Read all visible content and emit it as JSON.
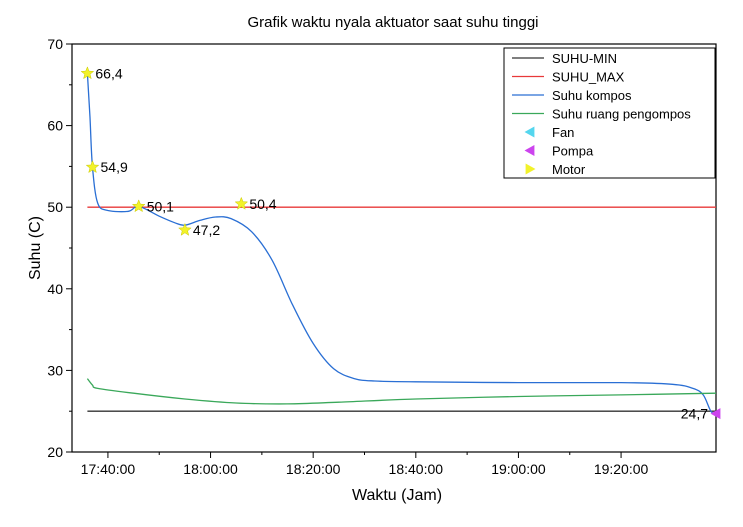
{
  "chart_data": {
    "type": "line",
    "title": "Grafik waktu nyala aktuator saat suhu tinggi",
    "xlabel": "Waktu (Jam)",
    "ylabel": "Suhu (C)",
    "xlim": [
      "17:33:00",
      "19:38:30"
    ],
    "ylim": [
      20,
      70
    ],
    "x_ticks": [
      "17:40:00",
      "18:00:00",
      "18:20:00",
      "18:40:00",
      "19:00:00",
      "19:20:00"
    ],
    "y_ticks": [
      20,
      30,
      40,
      50,
      60,
      70
    ],
    "grid": false,
    "legend_position": "top-right",
    "series": [
      {
        "name": "SUHU-MIN",
        "color": "#333333",
        "kind": "line",
        "points": [
          [
            "17:36:00",
            25
          ],
          [
            "19:38:30",
            25
          ]
        ]
      },
      {
        "name": "SUHU_MAX",
        "color": "#e8393a",
        "kind": "line",
        "points": [
          [
            "17:36:00",
            50
          ],
          [
            "19:38:30",
            50
          ]
        ]
      },
      {
        "name": "Suhu kompos",
        "color": "#2a6fd4",
        "kind": "line",
        "points": [
          [
            "17:36:00",
            66.4
          ],
          [
            "17:36:30",
            61
          ],
          [
            "17:37:00",
            54.9
          ],
          [
            "17:38:00",
            50.5
          ],
          [
            "17:40:00",
            49.6
          ],
          [
            "17:44:00",
            49.5
          ],
          [
            "17:46:00",
            50.1
          ],
          [
            "17:50:00",
            48.9
          ],
          [
            "17:53:00",
            48.1
          ],
          [
            "17:55:00",
            47.8
          ],
          [
            "17:58:00",
            48.4
          ],
          [
            "18:01:00",
            48.8
          ],
          [
            "18:04:00",
            48.6
          ],
          [
            "18:08:00",
            47.0
          ],
          [
            "18:12:00",
            43.5
          ],
          [
            "18:16:00",
            38.0
          ],
          [
            "18:20:00",
            33.3
          ],
          [
            "18:24:00",
            30.2
          ],
          [
            "18:28:00",
            29.0
          ],
          [
            "18:32:00",
            28.7
          ],
          [
            "18:40:00",
            28.6
          ],
          [
            "19:00:00",
            28.5
          ],
          [
            "19:20:00",
            28.5
          ],
          [
            "19:30:00",
            28.3
          ],
          [
            "19:34:00",
            27.8
          ],
          [
            "19:36:00",
            27.0
          ],
          [
            "19:37:30",
            25.0
          ],
          [
            "19:38:30",
            24.7
          ]
        ]
      },
      {
        "name": "Suhu ruang pengompos",
        "color": "#3aa85a",
        "kind": "line",
        "points": [
          [
            "17:36:00",
            29.0
          ],
          [
            "17:37:00",
            28.2
          ],
          [
            "17:38:00",
            27.8
          ],
          [
            "17:45:00",
            27.2
          ],
          [
            "17:55:00",
            26.5
          ],
          [
            "18:05:00",
            26.0
          ],
          [
            "18:15:00",
            25.9
          ],
          [
            "18:25:00",
            26.1
          ],
          [
            "18:40:00",
            26.5
          ],
          [
            "19:00:00",
            26.8
          ],
          [
            "19:20:00",
            27.0
          ],
          [
            "19:38:30",
            27.2
          ]
        ]
      },
      {
        "name": "Fan",
        "color": "#54d6ee",
        "kind": "marker",
        "marker": "triangle-left",
        "points": []
      },
      {
        "name": "Pompa",
        "color": "#cc44ee",
        "kind": "marker",
        "marker": "triangle-left",
        "points": [
          [
            "19:38:30",
            24.7
          ]
        ]
      },
      {
        "name": "Motor",
        "color": "#f2f22a",
        "kind": "marker",
        "marker": "star",
        "points": [
          [
            "17:36:00",
            66.4
          ],
          [
            "17:37:00",
            54.9
          ],
          [
            "17:46:00",
            50.1
          ],
          [
            "17:55:00",
            47.2
          ],
          [
            "18:06:00",
            50.4
          ]
        ]
      }
    ],
    "annotations": [
      {
        "text": "66,4",
        "x": "17:36:00",
        "y": 66.4,
        "anchor": "right"
      },
      {
        "text": "54,9",
        "x": "17:37:00",
        "y": 54.9,
        "anchor": "right"
      },
      {
        "text": "50,1",
        "x": "17:46:00",
        "y": 50.1,
        "anchor": "right"
      },
      {
        "text": "47,2",
        "x": "17:55:00",
        "y": 47.2,
        "anchor": "right"
      },
      {
        "text": "50,4",
        "x": "18:06:00",
        "y": 50.4,
        "anchor": "right"
      },
      {
        "text": "24,7",
        "x": "19:38:30",
        "y": 24.7,
        "anchor": "left"
      }
    ]
  }
}
